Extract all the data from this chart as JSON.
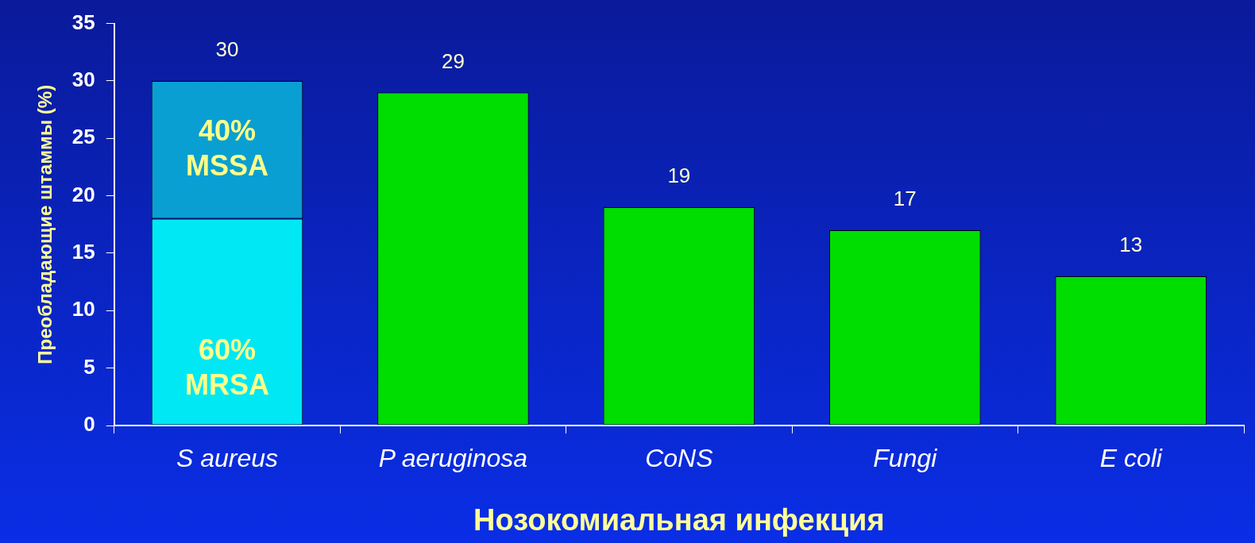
{
  "chart_data": {
    "type": "bar",
    "xlabel": "Нозокомиальная инфекция",
    "ylabel": "Преобладающие штаммы (%)",
    "categories": [
      "S aureus",
      "P aeruginosa",
      "CoNS",
      "Fungi",
      "E coli"
    ],
    "stacked": true,
    "series": [
      {
        "colors": [
          "#00e8f4",
          "#00dd00",
          "#00dd00",
          "#00dd00",
          "#00dd00"
        ],
        "values": [
          18,
          29,
          19,
          17,
          13
        ]
      },
      {
        "color": "#0a9fd2",
        "values": [
          12,
          null,
          null,
          null,
          null
        ]
      }
    ],
    "totals": [
      "30",
      "29",
      "19",
      "17",
      "13"
    ],
    "annotations": [
      "40% MSSA",
      "60% MRSA"
    ],
    "ylim": [
      0,
      35
    ],
    "yticks": [
      0,
      5,
      10,
      15,
      20,
      25,
      30,
      35
    ],
    "legend": false
  }
}
